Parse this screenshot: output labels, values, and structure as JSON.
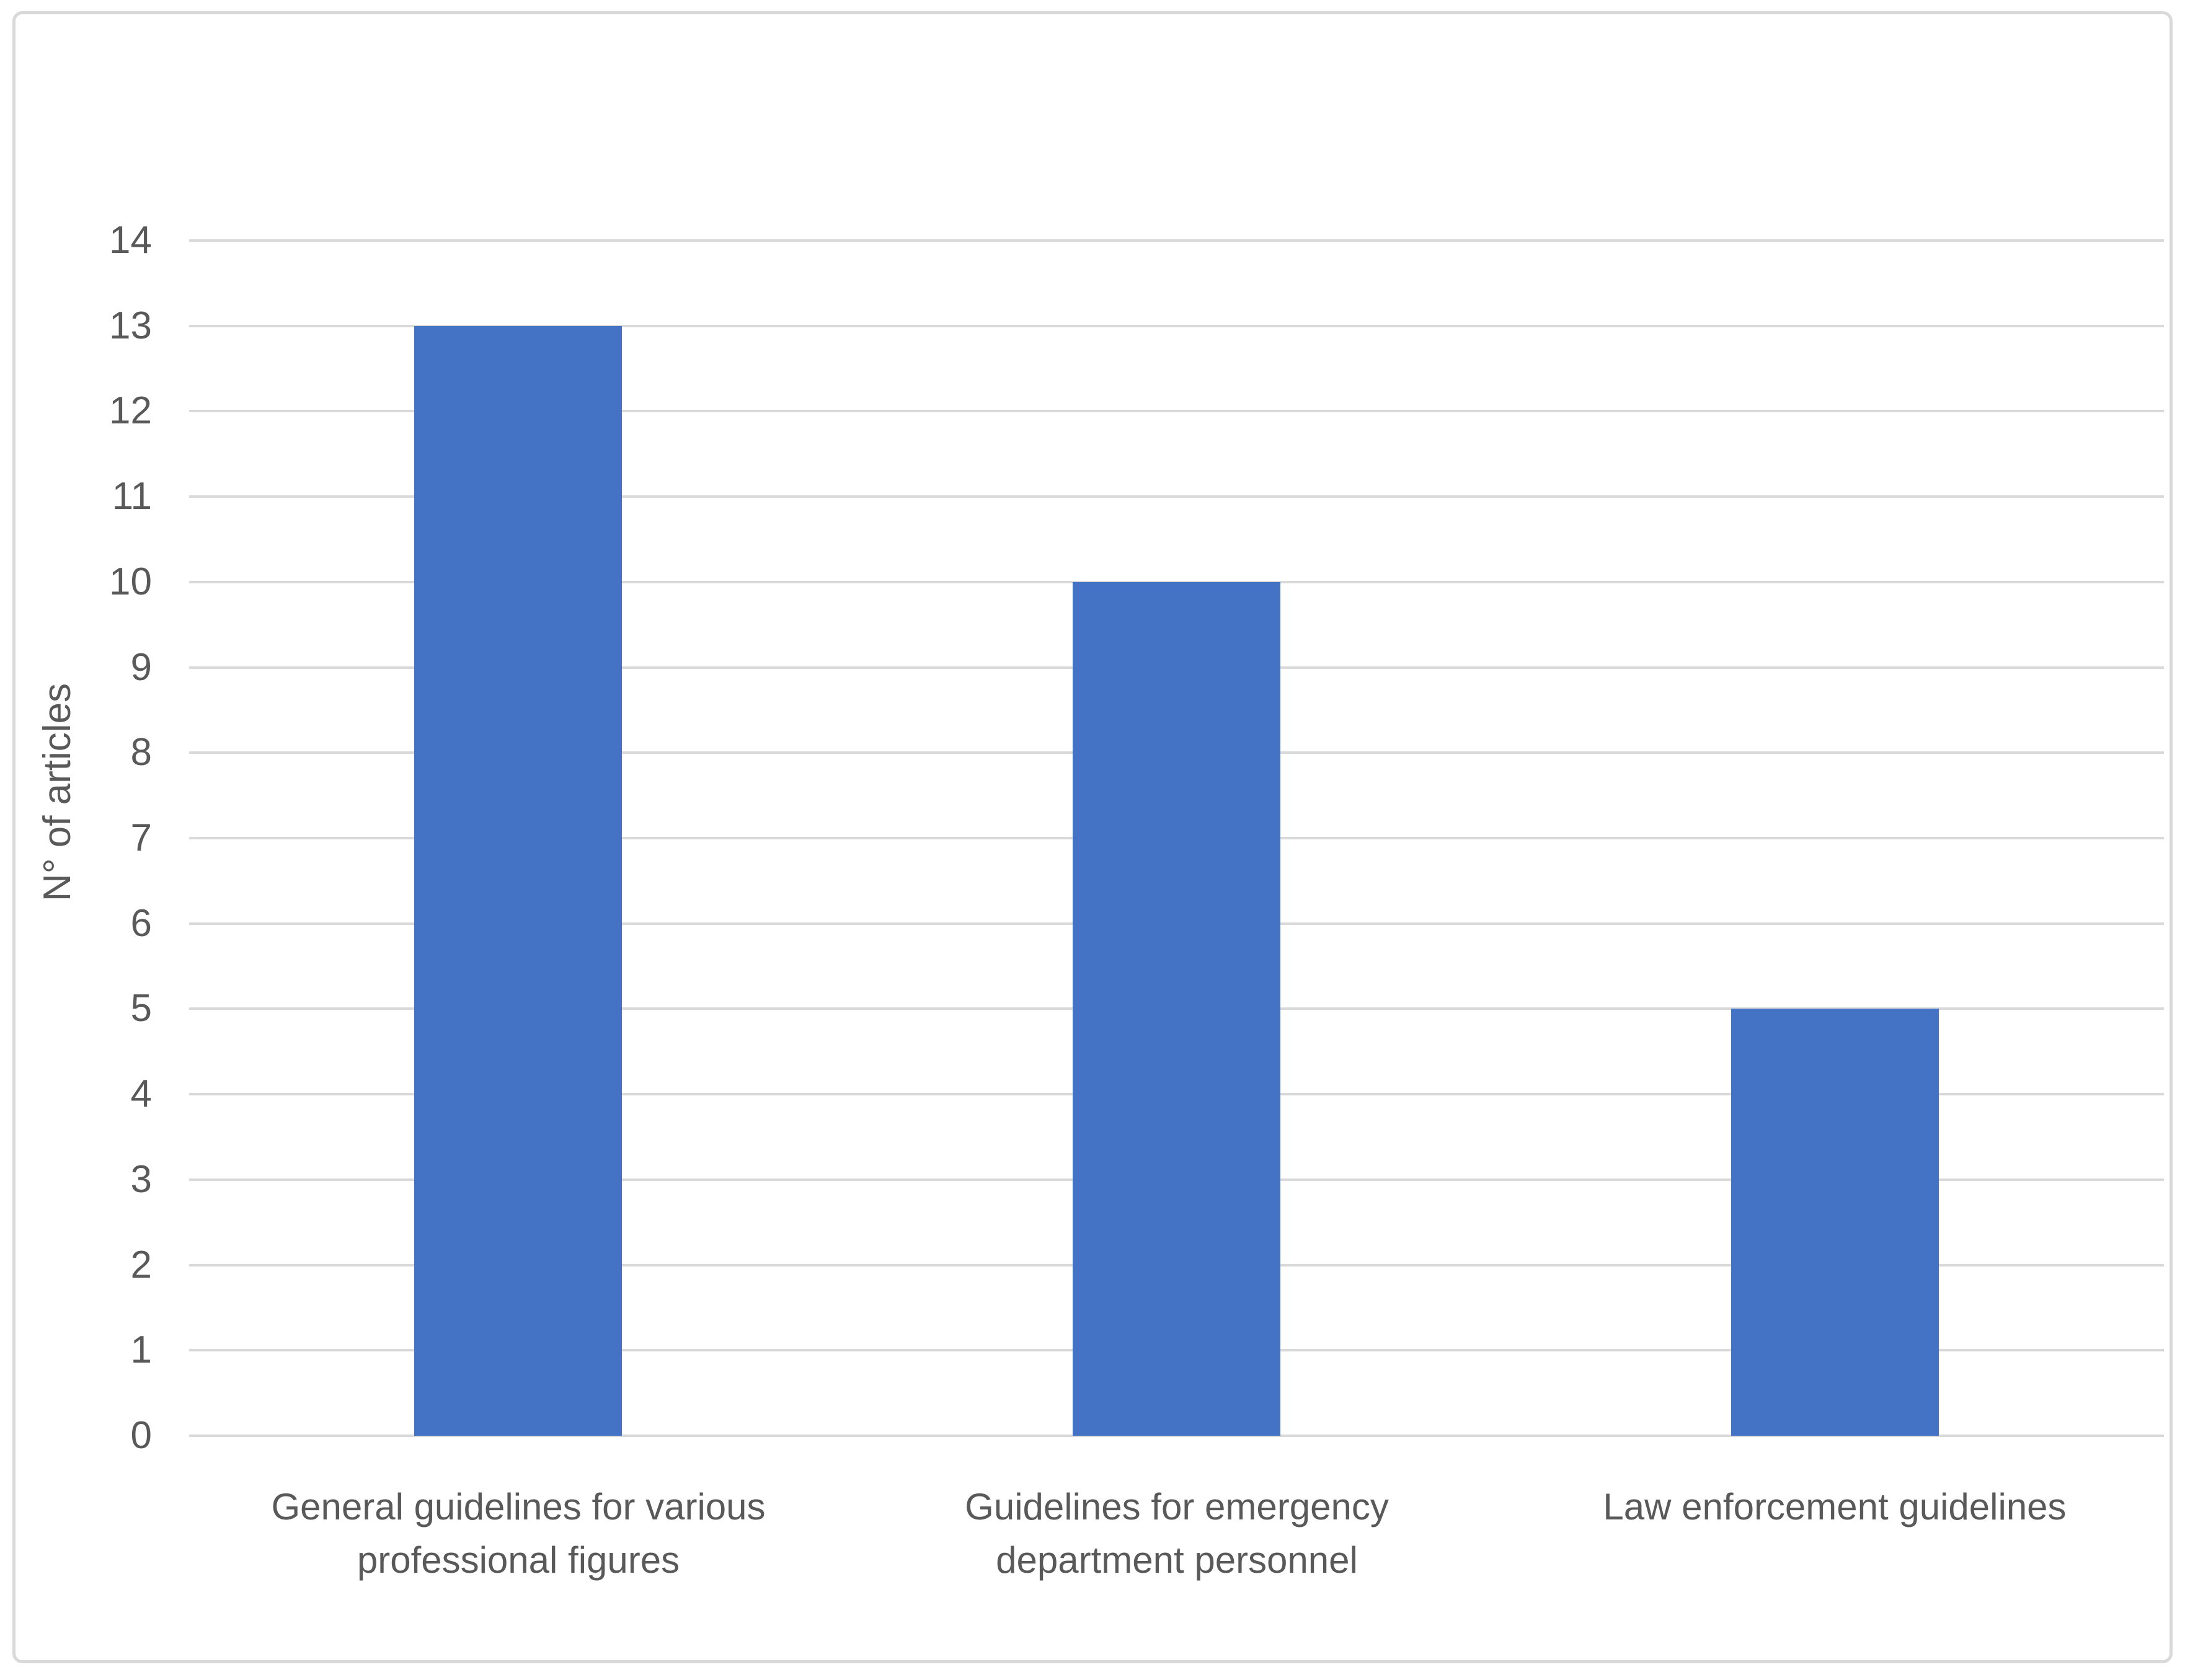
{
  "chart_data": {
    "type": "bar",
    "title": "",
    "xlabel": "",
    "ylabel": "N° of articles",
    "categories": [
      "General guidelines for various professional figures",
      "Guidelines for emergency department personnel",
      "Law enforcement guidelines"
    ],
    "category_label_lines": [
      [
        "General guidelines for various",
        "professional figures"
      ],
      [
        "Guidelines for emergency",
        "department personnel"
      ],
      [
        "Law enforcement guidelines"
      ]
    ],
    "values": [
      13,
      10,
      5
    ],
    "ylim": [
      0,
      14
    ],
    "ytick_step": 1,
    "ytick_labels": [
      "0",
      "1",
      "2",
      "3",
      "4",
      "5",
      "6",
      "7",
      "8",
      "9",
      "10",
      "11",
      "12",
      "13",
      "14"
    ],
    "grid": "horizontal",
    "legend": "none",
    "colors": {
      "bar": "#4472C4",
      "gridline": "#D9D9D9",
      "axis_text": "#595959",
      "frame_border": "#D9D9D9",
      "background": "#FFFFFF"
    }
  }
}
